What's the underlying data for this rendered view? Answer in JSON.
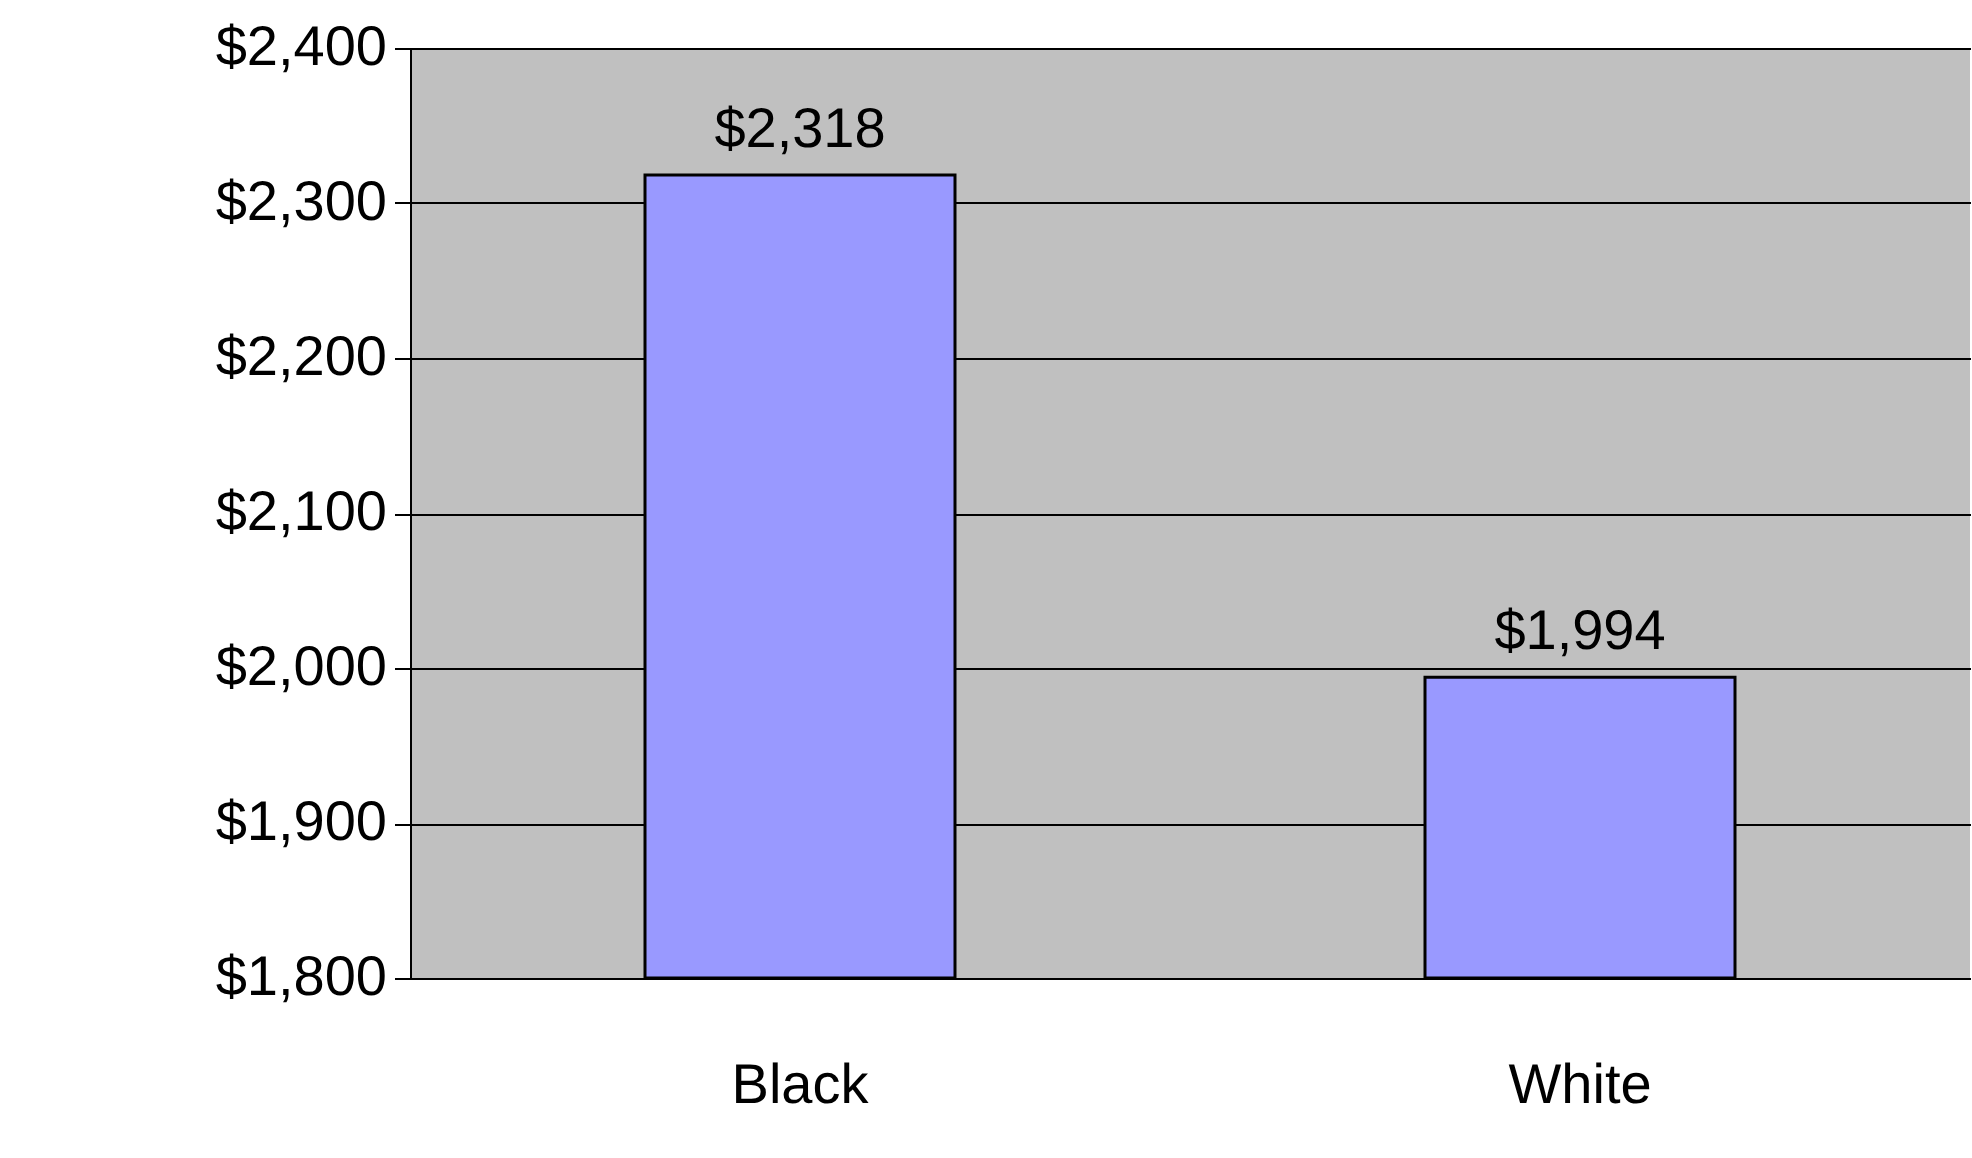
{
  "chart_data": {
    "type": "bar",
    "categories": [
      "Black",
      "White"
    ],
    "values": [
      2318,
      1994
    ],
    "value_labels": [
      "$2,318",
      "$1,994"
    ],
    "color": "#9999ff",
    "ylim": [
      1800,
      2400
    ],
    "yticks": [
      {
        "value": 1800,
        "label": "$1,800"
      },
      {
        "value": 1900,
        "label": "$1,900"
      },
      {
        "value": 2000,
        "label": "$2,000"
      },
      {
        "value": 2100,
        "label": "$2,100"
      },
      {
        "value": 2200,
        "label": "$2,200"
      },
      {
        "value": 2300,
        "label": "$2,300"
      },
      {
        "value": 2400,
        "label": "$2,400"
      }
    ],
    "grid": "y"
  }
}
